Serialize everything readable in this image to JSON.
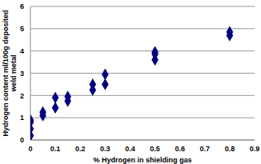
{
  "chart_data": {
    "type": "scatter",
    "x_label": "% Hydrogen in shielding gas",
    "y_label": "Hydrogen content ml/100g deposited weld metal",
    "x": [
      0,
      0,
      0,
      0,
      0.05,
      0.05,
      0.1,
      0.1,
      0.15,
      0.15,
      0.25,
      0.25,
      0.3,
      0.3,
      0.5,
      0.5,
      0.5,
      0.8,
      0.8
    ],
    "values": [
      0.2,
      0.5,
      0.8,
      0.9,
      1.1,
      1.25,
      1.45,
      1.9,
      1.75,
      1.95,
      2.25,
      2.5,
      2.5,
      2.95,
      3.6,
      3.85,
      3.95,
      4.7,
      4.85
    ],
    "color": "#000080",
    "marker": "diamond",
    "xlim": [
      0,
      0.9
    ],
    "xticks": [
      0,
      0.1,
      0.2,
      0.3,
      0.4,
      0.5,
      0.6,
      0.7,
      0.8,
      0.9
    ],
    "ylim": [
      0,
      6
    ],
    "yticks": [
      0,
      1,
      2,
      3,
      4,
      5,
      6
    ],
    "grid": true
  }
}
